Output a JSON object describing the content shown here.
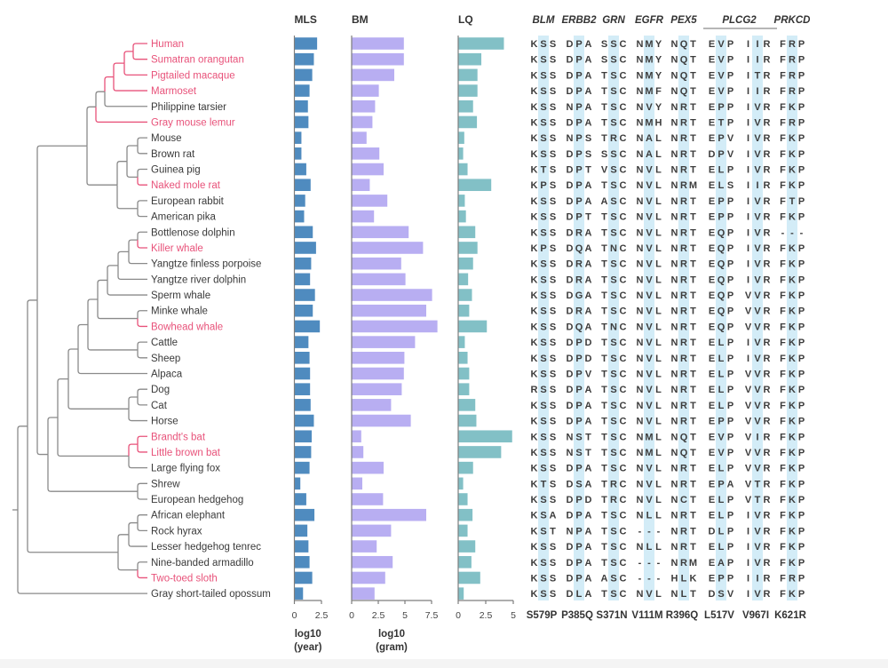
{
  "colors": {
    "highlight": "#e8527a",
    "branch": "#8a8a8a",
    "mls_bar": "#4f8bbf",
    "bm_bar": "#b8aef2",
    "lq_bar": "#82c0c6",
    "column_shade": "#d3ecf7",
    "text": "#3a3a3a"
  },
  "chart_data": [
    {
      "type": "bar",
      "orientation": "horizontal",
      "title": "MLS",
      "xlabel": "log10 (year)",
      "xlabel_lines": [
        "log10",
        "(year)"
      ],
      "xlim": [
        0,
        2.5
      ],
      "ticks": [
        "0",
        "2.5"
      ],
      "categories_ref": "species",
      "values": [
        2.1,
        1.8,
        1.65,
        1.4,
        1.25,
        1.3,
        0.65,
        0.65,
        1.1,
        1.5,
        1.0,
        0.9,
        1.7,
        2.0,
        1.55,
        1.45,
        1.9,
        1.7,
        2.35,
        1.3,
        1.4,
        1.45,
        1.45,
        1.5,
        1.8,
        1.6,
        1.55,
        1.4,
        0.55,
        1.1,
        1.85,
        1.2,
        1.3,
        1.4,
        1.65,
        0.8
      ]
    },
    {
      "type": "bar",
      "orientation": "horizontal",
      "title": "BM",
      "xlabel": "log10 (gram)",
      "xlabel_lines": [
        "log10",
        "(gram)"
      ],
      "xlim": [
        0,
        7.5
      ],
      "ticks": [
        "0",
        "2.5",
        "5",
        "7.5"
      ],
      "categories_ref": "species",
      "values": [
        4.9,
        4.9,
        4.0,
        2.55,
        2.2,
        1.95,
        1.4,
        2.6,
        3.0,
        1.7,
        3.35,
        2.1,
        5.35,
        6.7,
        4.65,
        5.05,
        7.55,
        7.0,
        8.05,
        5.95,
        4.95,
        4.9,
        4.7,
        3.7,
        5.55,
        0.9,
        1.1,
        3.0,
        1.0,
        2.95,
        7.0,
        3.7,
        2.35,
        3.85,
        3.15,
        2.15
      ]
    },
    {
      "type": "bar",
      "orientation": "horizontal",
      "title": "LQ",
      "xlabel": "",
      "xlim": [
        0,
        5
      ],
      "ticks": [
        "0",
        "2.5",
        "5"
      ],
      "categories_ref": "species",
      "values": [
        4.15,
        2.1,
        1.75,
        1.75,
        1.35,
        1.7,
        0.55,
        0.45,
        0.85,
        3.0,
        0.6,
        0.7,
        1.55,
        1.75,
        1.35,
        0.9,
        1.25,
        1.0,
        2.6,
        0.6,
        0.85,
        1.0,
        1.0,
        1.55,
        1.65,
        4.9,
        3.9,
        1.35,
        0.45,
        0.85,
        1.3,
        0.85,
        1.55,
        1.2,
        2.0,
        0.5
      ]
    }
  ],
  "species": [
    {
      "name": "Human",
      "highlight": true
    },
    {
      "name": "Sumatran orangutan",
      "highlight": true
    },
    {
      "name": "Pigtailed macaque",
      "highlight": true
    },
    {
      "name": "Marmoset",
      "highlight": true
    },
    {
      "name": "Philippine tarsier",
      "highlight": false
    },
    {
      "name": "Gray mouse lemur",
      "highlight": true
    },
    {
      "name": "Mouse",
      "highlight": false
    },
    {
      "name": "Brown rat",
      "highlight": false
    },
    {
      "name": "Guinea pig",
      "highlight": false
    },
    {
      "name": "Naked mole rat",
      "highlight": true
    },
    {
      "name": "European rabbit",
      "highlight": false
    },
    {
      "name": "American pika",
      "highlight": false
    },
    {
      "name": "Bottlenose dolphin",
      "highlight": false
    },
    {
      "name": "Killer whale",
      "highlight": true
    },
    {
      "name": "Yangtze finless porpoise",
      "highlight": false
    },
    {
      "name": "Yangtze river dolphin",
      "highlight": false
    },
    {
      "name": "Sperm whale",
      "highlight": false
    },
    {
      "name": "Minke whale",
      "highlight": false
    },
    {
      "name": "Bowhead whale",
      "highlight": true
    },
    {
      "name": "Cattle",
      "highlight": false
    },
    {
      "name": "Sheep",
      "highlight": false
    },
    {
      "name": "Alpaca",
      "highlight": false
    },
    {
      "name": "Dog",
      "highlight": false
    },
    {
      "name": "Cat",
      "highlight": false
    },
    {
      "name": "Horse",
      "highlight": false
    },
    {
      "name": "Brandt's bat",
      "highlight": true
    },
    {
      "name": "Little brown bat",
      "highlight": true
    },
    {
      "name": "Large flying fox",
      "highlight": false
    },
    {
      "name": "Shrew",
      "highlight": false
    },
    {
      "name": "European hedgehog",
      "highlight": false
    },
    {
      "name": "African elephant",
      "highlight": false
    },
    {
      "name": "Rock hyrax",
      "highlight": false
    },
    {
      "name": "Lesser hedgehog tenrec",
      "highlight": false
    },
    {
      "name": "Nine-banded armadillo",
      "highlight": false
    },
    {
      "name": "Two-toed sloth",
      "highlight": true
    },
    {
      "name": "Gray short-tailed opossum",
      "highlight": false
    }
  ],
  "alignment": {
    "genes": [
      {
        "label": "BLM",
        "columns": [
          0
        ]
      },
      {
        "label": "ERBB2",
        "columns": [
          1
        ]
      },
      {
        "label": "GRN",
        "columns": [
          2
        ]
      },
      {
        "label": "EGFR",
        "columns": [
          3
        ]
      },
      {
        "label": "PEX5",
        "columns": [
          4
        ]
      },
      {
        "label": "PLCG2",
        "columns": [
          5,
          6
        ]
      },
      {
        "label": "PRKCD",
        "columns": [
          7
        ]
      }
    ],
    "mutations": [
      "S579P",
      "P385Q",
      "S371N",
      "V111M",
      "R396Q",
      "L517V",
      "V967I",
      "K621R"
    ],
    "highlight_residues": [
      "P",
      "Q",
      "N",
      "M",
      "Q",
      "V",
      "I",
      "R"
    ],
    "rows": [
      [
        "KSS",
        "DPA",
        "SSC",
        "NMY",
        "NQT",
        "EVP",
        "IIR",
        "FRP"
      ],
      [
        "KSS",
        "DPA",
        "SSC",
        "NMY",
        "NQT",
        "EVP",
        "IIR",
        "FRP"
      ],
      [
        "KSS",
        "DPA",
        "TSC",
        "NMY",
        "NQT",
        "EVP",
        "ITR",
        "FRP"
      ],
      [
        "KSS",
        "DPA",
        "TSC",
        "NMF",
        "NQT",
        "EVP",
        "IIR",
        "FRP"
      ],
      [
        "KSS",
        "NPA",
        "TSC",
        "NVY",
        "NRT",
        "EPP",
        "IVR",
        "FKP"
      ],
      [
        "KSS",
        "DPA",
        "TSC",
        "NMH",
        "NRT",
        "ETP",
        "IVR",
        "FRP"
      ],
      [
        "KSS",
        "NPS",
        "TRC",
        "NAL",
        "NRT",
        "EPV",
        "IVR",
        "FKP"
      ],
      [
        "KSS",
        "DPS",
        "SSC",
        "NAL",
        "NRT",
        "DPV",
        "IVR",
        "FKP"
      ],
      [
        "KTS",
        "DPT",
        "VSC",
        "NVL",
        "NRT",
        "ELP",
        "IVR",
        "FKP"
      ],
      [
        "KPS",
        "DPA",
        "TSC",
        "NVL",
        "NRM",
        "ELS",
        "IIR",
        "FKP"
      ],
      [
        "KSS",
        "DPA",
        "ASC",
        "NVL",
        "NRT",
        "EPP",
        "IVR",
        "FTP"
      ],
      [
        "KSS",
        "DPT",
        "TSC",
        "NVL",
        "NRT",
        "EPP",
        "IVR",
        "FKP"
      ],
      [
        "KSS",
        "DRA",
        "TSC",
        "NVL",
        "NRT",
        "EQP",
        "IVR",
        "---"
      ],
      [
        "KPS",
        "DQA",
        "TNC",
        "NVL",
        "NRT",
        "EQP",
        "IVR",
        "FKP"
      ],
      [
        "KSS",
        "DRA",
        "TSC",
        "NVL",
        "NRT",
        "EQP",
        "IVR",
        "FKP"
      ],
      [
        "KSS",
        "DRA",
        "TSC",
        "NVL",
        "NRT",
        "EQP",
        "IVR",
        "FKP"
      ],
      [
        "KSS",
        "DGA",
        "TSC",
        "NVL",
        "NRT",
        "EQP",
        "VVR",
        "FKP"
      ],
      [
        "KSS",
        "DRA",
        "TSC",
        "NVL",
        "NRT",
        "EQP",
        "VVR",
        "FKP"
      ],
      [
        "KSS",
        "DQA",
        "TNC",
        "NVL",
        "NRT",
        "EQP",
        "VVR",
        "FKP"
      ],
      [
        "KSS",
        "DPD",
        "TSC",
        "NVL",
        "NRT",
        "ELP",
        "IVR",
        "FKP"
      ],
      [
        "KSS",
        "DPD",
        "TSC",
        "NVL",
        "NRT",
        "ELP",
        "IVR",
        "FKP"
      ],
      [
        "KSS",
        "DPV",
        "TSC",
        "NVL",
        "NRT",
        "ELP",
        "VVR",
        "FKP"
      ],
      [
        "RSS",
        "DPA",
        "TSC",
        "NVL",
        "NRT",
        "ELP",
        "VVR",
        "FKP"
      ],
      [
        "KSS",
        "DPA",
        "TSC",
        "NVL",
        "NRT",
        "ELP",
        "VVR",
        "FKP"
      ],
      [
        "KSS",
        "DPA",
        "TSC",
        "NVL",
        "NRT",
        "EPP",
        "VVR",
        "FKP"
      ],
      [
        "KSS",
        "NST",
        "TSC",
        "NML",
        "NQT",
        "EVP",
        "VIR",
        "FKP"
      ],
      [
        "KSS",
        "NST",
        "TSC",
        "NML",
        "NQT",
        "EVP",
        "VVR",
        "FKP"
      ],
      [
        "KSS",
        "DPA",
        "TSC",
        "NVL",
        "NRT",
        "ELP",
        "VVR",
        "FKP"
      ],
      [
        "KTS",
        "DSA",
        "TRC",
        "NVL",
        "NRT",
        "EPA",
        "VTR",
        "FKP"
      ],
      [
        "KSS",
        "DPD",
        "TRC",
        "NVL",
        "NCT",
        "ELP",
        "VTR",
        "FKP"
      ],
      [
        "KSA",
        "DPA",
        "TSC",
        "NLL",
        "NRT",
        "ELP",
        "IVR",
        "FKP"
      ],
      [
        "KST",
        "NPA",
        "TSC",
        "---",
        "NRT",
        "DLP",
        "IVR",
        "FKP"
      ],
      [
        "KSS",
        "DPA",
        "TSC",
        "NLL",
        "NRT",
        "ELP",
        "IVR",
        "FKP"
      ],
      [
        "KSS",
        "DPA",
        "TSC",
        "---",
        "NRM",
        "EAP",
        "IVR",
        "FKP"
      ],
      [
        "KSS",
        "DPA",
        "ASC",
        "---",
        "HLK",
        "EPP",
        "IIR",
        "FRP"
      ],
      [
        "KSS",
        "DLA",
        "TSC",
        "NVL",
        "NLT",
        "DSV",
        "IVR",
        "FKP"
      ]
    ]
  }
}
